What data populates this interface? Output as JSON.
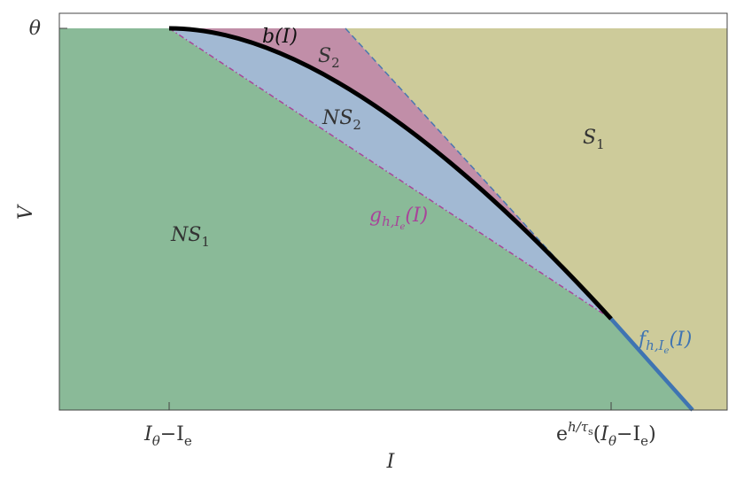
{
  "axes": {
    "y_label": "V",
    "y_tick": "θ",
    "x_label": "I",
    "x_tick_1": {
      "a": "I",
      "a_sub": "θ",
      "dash": "−",
      "b": "I",
      "b_sub": "e"
    },
    "x_tick_2": {
      "e": "e",
      "exp": "h/τ",
      "exp_sub": "s",
      "open": "(",
      "a": "I",
      "a_sub": "θ",
      "dash": "−",
      "b": "I",
      "b_sub": "e",
      "close": ")"
    }
  },
  "regions": {
    "S1": {
      "main": "S",
      "sub": "1"
    },
    "S2": {
      "main": "S",
      "sub": "2"
    },
    "NS1": {
      "main": "NS",
      "sub": "1"
    },
    "NS2": {
      "main": "NS",
      "sub": "2"
    }
  },
  "curves": {
    "b": "b(I)",
    "g": {
      "main": "g",
      "sub": "h,I",
      "subsub": "e",
      "arg": "(I)"
    },
    "f": {
      "main": "f",
      "sub": "h,I",
      "subsub": "e",
      "arg": "(I)"
    }
  }
}
